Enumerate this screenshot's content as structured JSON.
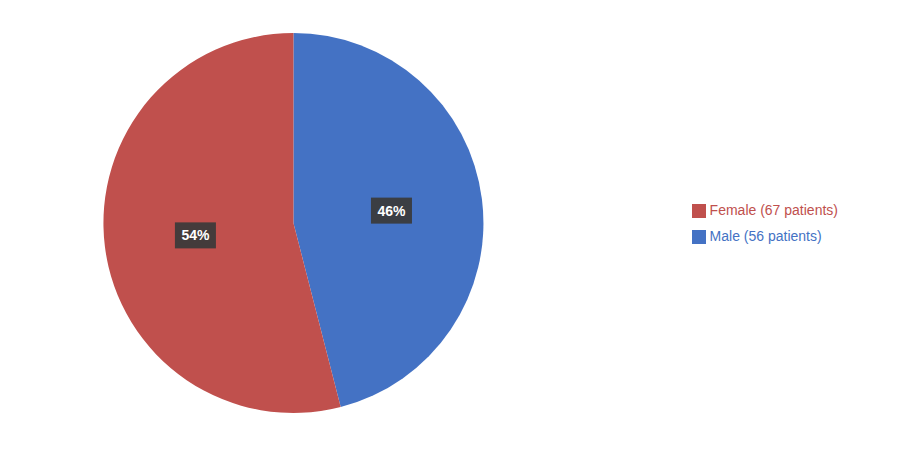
{
  "chart_data": {
    "type": "pie",
    "categories": [
      "Male (56 patients)",
      "Female (67 patients)"
    ],
    "values": [
      46,
      54
    ],
    "value_labels": [
      "46%",
      "54%"
    ],
    "data_labels": true,
    "colors": [
      "#4472C4",
      "#C0504D"
    ],
    "legend": "right"
  }
}
